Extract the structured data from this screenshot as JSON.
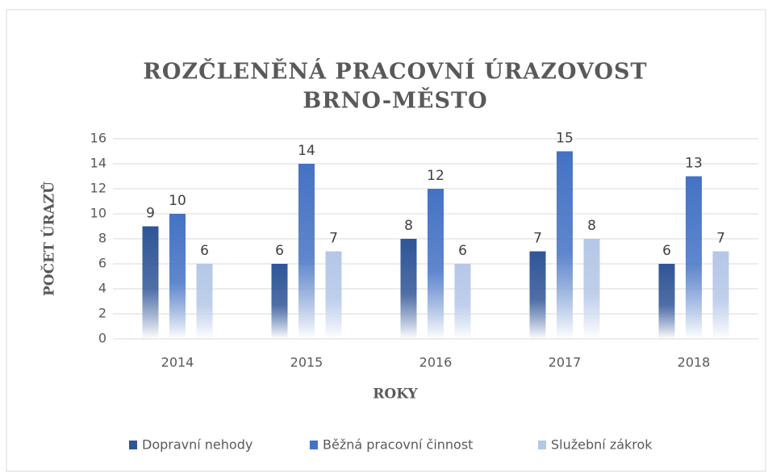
{
  "chart_data": {
    "type": "bar",
    "title": [
      "ROZČLENĚNÁ PRACOVNÍ ÚRAZOVOST",
      "BRNO-MĚSTO"
    ],
    "x_label": "ROKY",
    "y_label": "POČET ÚRAZŮ",
    "categories": [
      "2014",
      "2015",
      "2016",
      "2017",
      "2018"
    ],
    "series": [
      {
        "name": "Dopravní nehody",
        "color": "#2f5597",
        "values": [
          9,
          6,
          8,
          7,
          6
        ]
      },
      {
        "name": "Běžná pracovní činnost",
        "color": "#4472c4",
        "values": [
          10,
          14,
          12,
          15,
          13
        ]
      },
      {
        "name": "Služební zákrok",
        "color": "#b4c7e7",
        "values": [
          6,
          7,
          6,
          8,
          7
        ]
      }
    ],
    "ylim": [
      0,
      16
    ],
    "yticks": [
      0,
      2,
      4,
      6,
      8,
      10,
      12,
      14,
      16
    ],
    "grid": true,
    "legend": "bottom"
  }
}
